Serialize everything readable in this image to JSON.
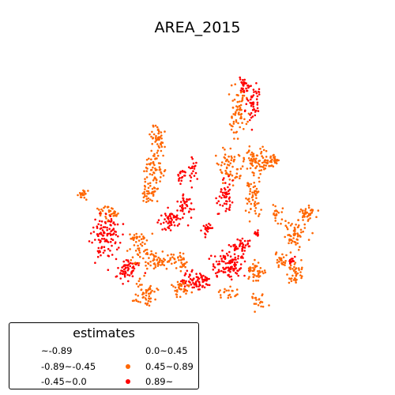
{
  "title": "AREA_2015",
  "legend": {
    "title": "estimates",
    "items": [
      {
        "label": "~-0.89",
        "color": null
      },
      {
        "label": "-0.89~-0.45",
        "color": null
      },
      {
        "label": "-0.45~0.0",
        "color": null
      },
      {
        "label": "0.0~0.45",
        "color": null
      },
      {
        "label": "0.45~0.89",
        "color": "#ff6600"
      },
      {
        "label": "0.89~",
        "color": "#ff0000"
      }
    ]
  },
  "colors": {
    "orange": "#ff6600",
    "red": "#ff0000"
  }
}
